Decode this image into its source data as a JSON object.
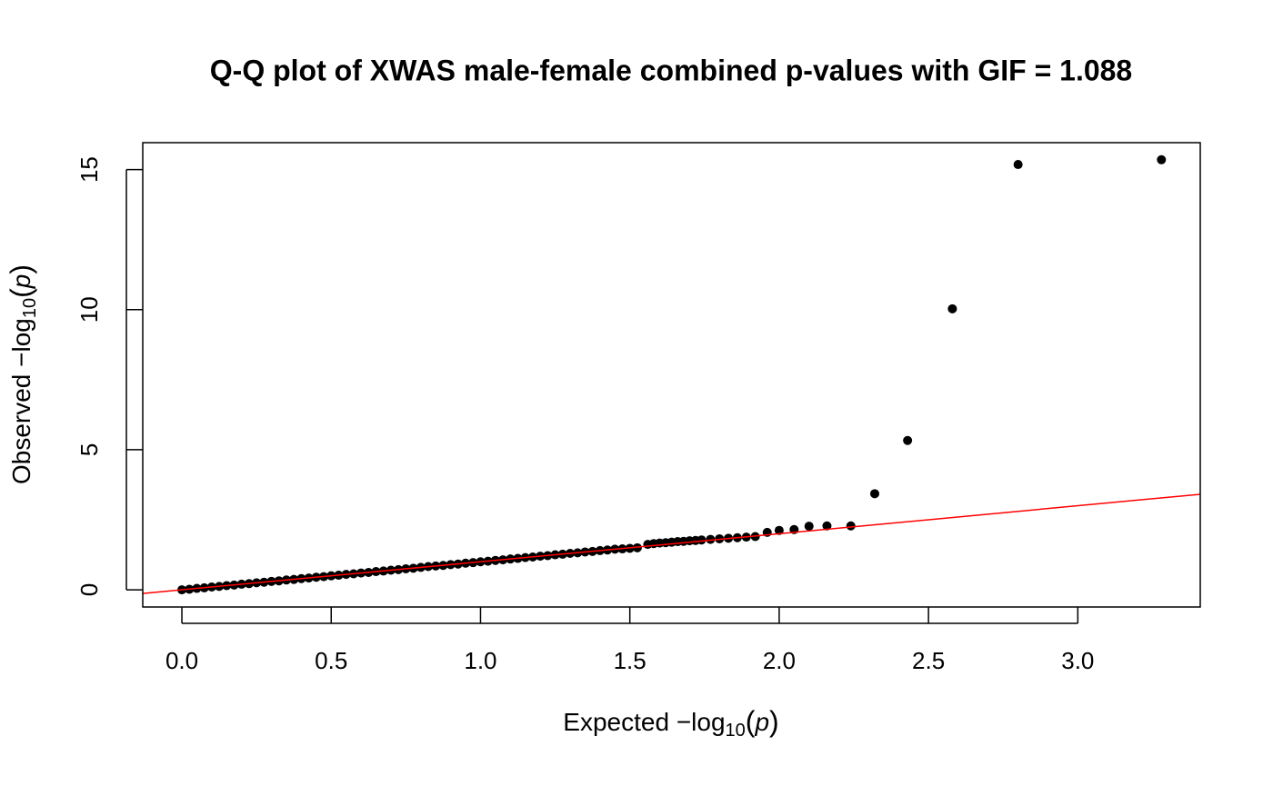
{
  "chart_data": {
    "type": "scatter",
    "title": "Q-Q plot of XWAS male-female combined p-values with GIF = 1.088",
    "xlabel": {
      "main": "Expected  −log",
      "sub": "10",
      "open": "(",
      "var": "p",
      "close": ")"
    },
    "ylabel": {
      "main": "Observed  −log",
      "sub": "10",
      "open": "(",
      "var": "p",
      "close": ")"
    },
    "color": "#000000",
    "reference_line": {
      "intercept": 0,
      "slope": 1,
      "color": "#ff0000"
    },
    "xlim": [
      -0.131,
      3.41
    ],
    "ylim": [
      -0.614,
      15.96
    ],
    "xticks": [
      {
        "value": 0,
        "label": "0.0"
      },
      0.5,
      {
        "value": 1,
        "label": "1.0"
      },
      1.5,
      {
        "value": 2,
        "label": "2.0"
      },
      2.5,
      {
        "value": 3,
        "label": "3.0"
      }
    ],
    "yticks": [
      0,
      5,
      10,
      15
    ],
    "x": [
      0,
      0.025,
      0.05,
      0.075,
      0.1,
      0.125,
      0.15,
      0.175,
      0.2,
      0.225,
      0.25,
      0.275,
      0.3,
      0.325,
      0.35,
      0.375,
      0.4,
      0.425,
      0.45,
      0.475,
      0.5,
      0.525,
      0.55,
      0.575,
      0.6,
      0.625,
      0.65,
      0.675,
      0.7,
      0.725,
      0.75,
      0.775,
      0.8,
      0.825,
      0.85,
      0.875,
      0.9,
      0.925,
      0.95,
      0.975,
      1.0,
      1.025,
      1.05,
      1.075,
      1.1,
      1.125,
      1.15,
      1.175,
      1.2,
      1.225,
      1.25,
      1.275,
      1.3,
      1.325,
      1.35,
      1.375,
      1.4,
      1.425,
      1.45,
      1.475,
      1.5,
      1.525,
      1.56,
      1.58,
      1.6,
      1.62,
      1.64,
      1.66,
      1.68,
      1.7,
      1.72,
      1.74,
      1.77,
      1.8,
      1.83,
      1.86,
      1.89,
      1.92,
      1.96,
      2.0,
      2.05,
      2.1,
      2.16,
      2.24,
      2.32,
      2.43,
      2.58,
      2.8,
      3.28
    ],
    "y": [
      0,
      0.02,
      0.05,
      0.07,
      0.1,
      0.12,
      0.15,
      0.17,
      0.2,
      0.22,
      0.25,
      0.27,
      0.3,
      0.32,
      0.35,
      0.37,
      0.4,
      0.42,
      0.45,
      0.47,
      0.5,
      0.52,
      0.55,
      0.57,
      0.6,
      0.62,
      0.65,
      0.67,
      0.7,
      0.72,
      0.75,
      0.77,
      0.8,
      0.83,
      0.85,
      0.87,
      0.9,
      0.92,
      0.95,
      0.97,
      1.0,
      1.02,
      1.05,
      1.07,
      1.1,
      1.12,
      1.15,
      1.17,
      1.2,
      1.22,
      1.25,
      1.27,
      1.3,
      1.32,
      1.35,
      1.37,
      1.4,
      1.42,
      1.45,
      1.46,
      1.48,
      1.5,
      1.62,
      1.65,
      1.67,
      1.68,
      1.7,
      1.72,
      1.73,
      1.75,
      1.76,
      1.78,
      1.8,
      1.82,
      1.84,
      1.86,
      1.88,
      1.9,
      2.05,
      2.12,
      2.15,
      2.27,
      2.28,
      2.28,
      3.43,
      5.33,
      10.03,
      15.18,
      15.35
    ]
  }
}
